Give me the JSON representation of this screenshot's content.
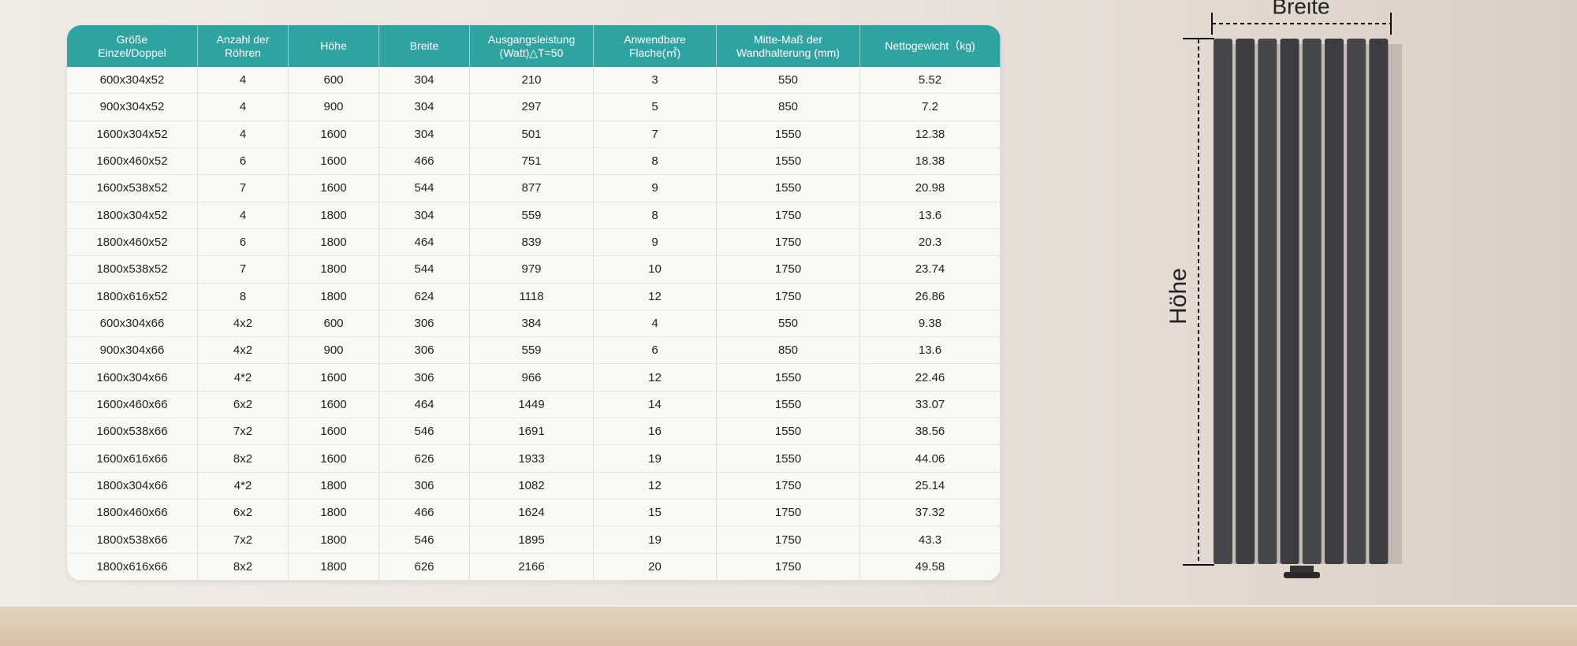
{
  "table": {
    "headers": [
      [
        "Größe",
        "Einzel/Doppel"
      ],
      [
        "Anzahl der",
        "Röhren"
      ],
      [
        "Höhe"
      ],
      [
        "Breite"
      ],
      [
        "Ausgangsleistung",
        "(Watt)△T=50"
      ],
      [
        "Anwendbare",
        "Flache(㎡)"
      ],
      [
        "Mitte-Maß der",
        "Wandhalterung (mm)"
      ],
      [
        "Nettogewicht（kg)"
      ]
    ],
    "rows": [
      [
        "600x304x52",
        "4",
        "600",
        "304",
        "210",
        "3",
        "550",
        "5.52"
      ],
      [
        "900x304x52",
        "4",
        "900",
        "304",
        "297",
        "5",
        "850",
        "7.2"
      ],
      [
        "1600x304x52",
        "4",
        "1600",
        "304",
        "501",
        "7",
        "1550",
        "12.38"
      ],
      [
        "1600x460x52",
        "6",
        "1600",
        "466",
        "751",
        "8",
        "1550",
        "18.38"
      ],
      [
        "1600x538x52",
        "7",
        "1600",
        "544",
        "877",
        "9",
        "1550",
        "20.98"
      ],
      [
        "1800x304x52",
        "4",
        "1800",
        "304",
        "559",
        "8",
        "1750",
        "13.6"
      ],
      [
        "1800x460x52",
        "6",
        "1800",
        "464",
        "839",
        "9",
        "1750",
        "20.3"
      ],
      [
        "1800x538x52",
        "7",
        "1800",
        "544",
        "979",
        "10",
        "1750",
        "23.74"
      ],
      [
        "1800x616x52",
        "8",
        "1800",
        "624",
        "1118",
        "12",
        "1750",
        "26.86"
      ],
      [
        "600x304x66",
        "4x2",
        "600",
        "306",
        "384",
        "4",
        "550",
        "9.38"
      ],
      [
        "900x304x66",
        "4x2",
        "900",
        "306",
        "559",
        "6",
        "850",
        "13.6"
      ],
      [
        "1600x304x66",
        "4*2",
        "1600",
        "306",
        "966",
        "12",
        "1550",
        "22.46"
      ],
      [
        "1600x460x66",
        "6x2",
        "1600",
        "464",
        "1449",
        "14",
        "1550",
        "33.07"
      ],
      [
        "1600x538x66",
        "7x2",
        "1600",
        "546",
        "1691",
        "16",
        "1550",
        "38.56"
      ],
      [
        "1600x616x66",
        "8x2",
        "1600",
        "626",
        "1933",
        "19",
        "1550",
        "44.06"
      ],
      [
        "1800x304x66",
        "4*2",
        "1800",
        "306",
        "1082",
        "12",
        "1750",
        "25.14"
      ],
      [
        "1800x460x66",
        "6x2",
        "1800",
        "466",
        "1624",
        "15",
        "1750",
        "37.32"
      ],
      [
        "1800x538x66",
        "7x2",
        "1800",
        "546",
        "1895",
        "19",
        "1750",
        "43.3"
      ],
      [
        "1800x616x66",
        "8x2",
        "1800",
        "626",
        "2166",
        "20",
        "1750",
        "49.58"
      ]
    ]
  },
  "diagram": {
    "width_label": "Breite",
    "height_label": "Höhe"
  }
}
